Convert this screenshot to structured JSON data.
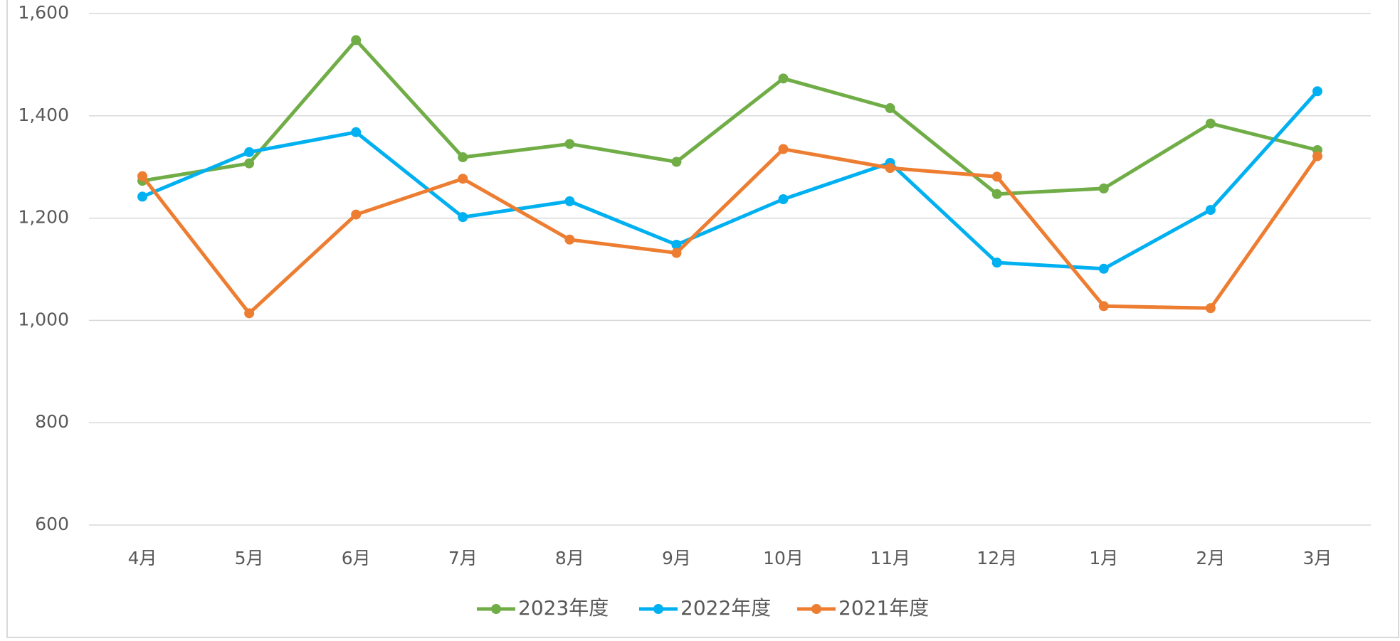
{
  "chart_data": {
    "type": "line",
    "categories": [
      "4月",
      "5月",
      "6月",
      "7月",
      "8月",
      "9月",
      "10月",
      "11月",
      "12月",
      "1月",
      "2月",
      "3月"
    ],
    "series": [
      {
        "name": "2023年度",
        "color": "#70ad47",
        "values": [
          1273,
          1307,
          1548,
          1319,
          1345,
          1310,
          1473,
          1415,
          1247,
          1258,
          1385,
          1333
        ]
      },
      {
        "name": "2022年度",
        "color": "#00b0f0",
        "values": [
          1242,
          1329,
          1368,
          1202,
          1233,
          1148,
          1237,
          1308,
          1113,
          1101,
          1216,
          1448
        ]
      },
      {
        "name": "2021年度",
        "color": "#ed7d31",
        "values": [
          1282,
          1014,
          1207,
          1277,
          1158,
          1132,
          1335,
          1298,
          1281,
          1028,
          1024,
          1321
        ]
      }
    ],
    "ylim": [
      600,
      1600
    ],
    "yticks": [
      600,
      800,
      {
        "value": 1000,
        "label": "1,000"
      },
      {
        "value": 1200,
        "label": "1,200"
      },
      {
        "value": 1400,
        "label": "1,400"
      },
      {
        "value": 1600,
        "label": "1,600"
      }
    ],
    "grid": true,
    "legend": "bottom"
  }
}
